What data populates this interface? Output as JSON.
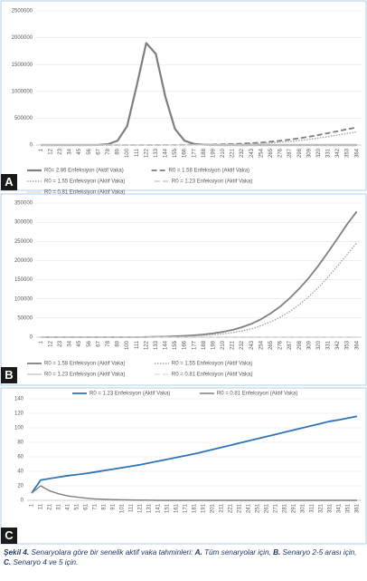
{
  "chart_data": [
    {
      "type": "line",
      "panel_label": "A",
      "categories": [
        1,
        12,
        23,
        34,
        45,
        56,
        67,
        78,
        89,
        100,
        111,
        122,
        133,
        144,
        155,
        166,
        177,
        188,
        199,
        210,
        221,
        232,
        243,
        254,
        265,
        276,
        287,
        298,
        309,
        320,
        331,
        342,
        353,
        364
      ],
      "ylim": [
        0,
        2500000
      ],
      "yticks": [
        0,
        500000,
        1000000,
        1500000,
        2000000,
        2500000
      ],
      "grid": true,
      "legend": "bottom",
      "series": [
        {
          "name": "R0= 2.86 Enfeksiyon (Aktif Vaka)",
          "color": "#7f7f7f",
          "dash": "solid",
          "values": [
            0,
            0,
            0,
            0,
            0,
            0,
            2000,
            15000,
            80000,
            350000,
            1100000,
            1900000,
            1700000,
            900000,
            300000,
            80000,
            20000,
            5000,
            1000,
            0,
            0,
            0,
            0,
            0,
            0,
            0,
            0,
            0,
            0,
            0,
            0,
            0,
            0,
            0
          ]
        },
        {
          "name": "R0 = 1.58 Enfeksiyon (Aktif Vaka)",
          "color": "#7f7f7f",
          "dash": "dashed",
          "values": [
            0,
            0,
            0,
            0,
            0,
            0,
            0,
            0,
            0,
            0,
            0,
            500,
            1000,
            1500,
            2500,
            3500,
            5000,
            7000,
            10000,
            14000,
            19000,
            26000,
            35000,
            47000,
            62000,
            80000,
            102000,
            127000,
            155000,
            187000,
            222000,
            258000,
            295000,
            328000
          ]
        },
        {
          "name": "R0 = 1.55 Enfeksiyon (Aktif Vaka)",
          "color": "#a5a5a5",
          "dash": "dotted",
          "values": [
            0,
            0,
            0,
            0,
            0,
            0,
            0,
            0,
            0,
            0,
            0,
            300,
            600,
            1000,
            1500,
            2200,
            3200,
            4500,
            6300,
            8800,
            12000,
            16500,
            22000,
            30000,
            40000,
            52000,
            67000,
            85000,
            106000,
            130000,
            157000,
            186000,
            216000,
            246000
          ]
        },
        {
          "name": "R0 = 1.23 Enfeksiyon (Aktif Vaka)",
          "color": "#bfbfbf",
          "dash": "dashed",
          "values": [
            0,
            0,
            0,
            0,
            0,
            0,
            0,
            0,
            0,
            0,
            0,
            0,
            0,
            0,
            0,
            0,
            0,
            0,
            0,
            0,
            0,
            0,
            0,
            0,
            0,
            0,
            0,
            0,
            0,
            0,
            0,
            0,
            0,
            0
          ]
        },
        {
          "name": "R0 = 0.81 Enfeksiyon (Aktif Vaka)",
          "color": "#d9d9d9",
          "dash": "solid",
          "values": [
            0,
            0,
            0,
            0,
            0,
            0,
            0,
            0,
            0,
            0,
            0,
            0,
            0,
            0,
            0,
            0,
            0,
            0,
            0,
            0,
            0,
            0,
            0,
            0,
            0,
            0,
            0,
            0,
            0,
            0,
            0,
            0,
            0,
            0
          ]
        }
      ]
    },
    {
      "type": "line",
      "panel_label": "B",
      "categories": [
        1,
        12,
        23,
        34,
        45,
        56,
        67,
        78,
        89,
        100,
        111,
        122,
        133,
        144,
        155,
        166,
        177,
        188,
        199,
        210,
        221,
        232,
        243,
        254,
        265,
        276,
        287,
        298,
        309,
        320,
        331,
        342,
        353,
        364
      ],
      "ylim": [
        0,
        350000
      ],
      "yticks": [
        0,
        50000,
        100000,
        150000,
        200000,
        250000,
        300000,
        350000
      ],
      "grid": true,
      "legend": "bottom",
      "series": [
        {
          "name": "R0 = 1.58 Enfeksiyon (Aktif Vaka)",
          "color": "#7f7f7f",
          "dash": "solid",
          "values": [
            0,
            0,
            0,
            0,
            0,
            0,
            0,
            0,
            0,
            0,
            0,
            500,
            1000,
            1500,
            2500,
            3500,
            5000,
            7000,
            10000,
            14000,
            19000,
            26000,
            35000,
            47000,
            62000,
            80000,
            102000,
            127000,
            155000,
            187000,
            222000,
            258000,
            295000,
            328000
          ]
        },
        {
          "name": "R0 = 1.55 Enfeksiyon (Aktif Vaka)",
          "color": "#a5a5a5",
          "dash": "dotted",
          "values": [
            0,
            0,
            0,
            0,
            0,
            0,
            0,
            0,
            0,
            0,
            0,
            300,
            600,
            1000,
            1500,
            2200,
            3200,
            4500,
            6300,
            8800,
            12000,
            16500,
            22000,
            30000,
            40000,
            52000,
            67000,
            85000,
            106000,
            130000,
            157000,
            186000,
            216000,
            246000
          ]
        },
        {
          "name": "R0 = 1.23 Enfeksiyon (Aktif Vaka)",
          "color": "#bfbfbf",
          "dash": "solid",
          "values": [
            0,
            0,
            0,
            0,
            0,
            0,
            0,
            0,
            0,
            0,
            0,
            0,
            0,
            0,
            0,
            0,
            0,
            0,
            0,
            0,
            0,
            0,
            0,
            0,
            0,
            0,
            0,
            0,
            0,
            0,
            0,
            0,
            0,
            0
          ]
        },
        {
          "name": "R0 = 0.81 Enfeksiyon (Aktif Vaka)",
          "color": "#d9d9d9",
          "dash": "dashed",
          "values": [
            0,
            0,
            0,
            0,
            0,
            0,
            0,
            0,
            0,
            0,
            0,
            0,
            0,
            0,
            0,
            0,
            0,
            0,
            0,
            0,
            0,
            0,
            0,
            0,
            0,
            0,
            0,
            0,
            0,
            0,
            0,
            0,
            0,
            0
          ]
        }
      ]
    },
    {
      "type": "line",
      "panel_label": "C",
      "categories": [
        1,
        11,
        21,
        31,
        41,
        51,
        61,
        71,
        81,
        91,
        101,
        111,
        121,
        131,
        141,
        151,
        161,
        171,
        181,
        191,
        201,
        211,
        221,
        231,
        241,
        251,
        261,
        271,
        281,
        291,
        301,
        311,
        321,
        331,
        341,
        351,
        361
      ],
      "ylim": [
        0,
        140
      ],
      "yticks": [
        0,
        20,
        40,
        60,
        80,
        100,
        120,
        140
      ],
      "grid": true,
      "legend": "top",
      "series": [
        {
          "name": "R0 = 1.23 Enfeksiyon (Aktif Vaka)",
          "color": "#2e75b6",
          "dash": "solid",
          "values": [
            10,
            28,
            30,
            32,
            34,
            35.5,
            37,
            39,
            41,
            43,
            45,
            47,
            49,
            51.5,
            54,
            56.5,
            59,
            61.5,
            64,
            67,
            70,
            73,
            76,
            79,
            82,
            85,
            88,
            91,
            94,
            97,
            100,
            103,
            106,
            109,
            111,
            113.5,
            116
          ]
        },
        {
          "name": "R0 = 0.81 Enfeksiyon (Aktif Vaka)",
          "color": "#7f7f7f",
          "dash": "solid",
          "values": [
            10,
            20,
            13,
            9,
            6,
            4.5,
            3,
            2,
            1.5,
            1,
            0.7,
            0.5,
            0.3,
            0.2,
            0,
            0,
            0,
            0,
            0,
            0,
            0,
            0,
            0,
            0,
            0,
            0,
            0,
            0,
            0,
            0,
            0,
            0,
            0,
            0,
            0,
            0,
            0
          ]
        }
      ]
    }
  ],
  "caption": [
    {
      "text": "Şekil 4.",
      "style": "bold italic"
    },
    {
      "text": " Senaryolara göre bir senelik aktif vaka tahminleri: ",
      "style": "italic"
    },
    {
      "text": "A.",
      "style": "bold italic"
    },
    {
      "text": " Tüm senaryolar için, ",
      "style": "italic"
    },
    {
      "text": "B.",
      "style": "bold italic"
    },
    {
      "text": " Senaryo 2-5 arası için, ",
      "style": "italic"
    },
    {
      "text": "C.",
      "style": "bold italic"
    },
    {
      "text": " Senaryo 4 ve 5 için.",
      "style": "italic"
    }
  ]
}
